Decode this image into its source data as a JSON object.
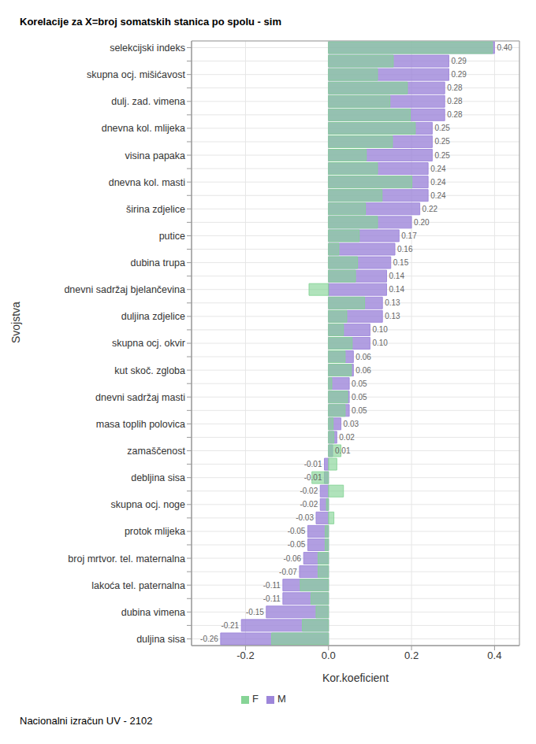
{
  "chart_data": {
    "type": "bar",
    "orientation": "horizontal",
    "title": "Korelacije za X=broj somatskih stanica po spolu - sim",
    "footer": "Nacionalni izračun UV - 2102",
    "x_label": "Kor.koeficient",
    "y_label": "Svojstva",
    "categories": [
      "selekcijski indeks",
      null,
      "skupna ocj. mišićavost",
      null,
      "dulj. zad. vimena",
      null,
      "dnevna kol. mlijeka",
      null,
      "visina papaka",
      null,
      "dnevna kol. masti",
      null,
      "širina zdjelice",
      null,
      "putice",
      null,
      "dubina trupa",
      null,
      "dnevni sadržaj bjelančevina",
      null,
      "duljina zdjelice",
      null,
      "skupna ocj. okvir",
      null,
      "kut skoč. zgloba",
      null,
      "dnevni sadržaj masti",
      null,
      "masa toplih polovica",
      null,
      "zamaščenost",
      null,
      "debljina sisa",
      null,
      "skupna ocj. noge",
      null,
      "protok mlijeka",
      null,
      "broj mrtvor. tel. maternalna",
      null,
      "lakoća tel. paternalna",
      null,
      "dubina vimena",
      null,
      "duljina sisa"
    ],
    "series": [
      {
        "name": "M",
        "color": "#9d86da",
        "data_labels": true,
        "values": [
          0.4,
          0.29,
          0.29,
          0.28,
          0.28,
          0.28,
          0.25,
          0.25,
          0.25,
          0.24,
          0.24,
          0.24,
          0.22,
          0.2,
          0.17,
          0.16,
          0.15,
          0.14,
          0.14,
          0.13,
          0.13,
          0.1,
          0.1,
          0.06,
          0.06,
          0.05,
          0.05,
          0.05,
          0.03,
          0.02,
          0.01,
          -0.01,
          -0.01,
          -0.02,
          -0.02,
          -0.03,
          -0.05,
          -0.05,
          -0.06,
          -0.07,
          -0.11,
          -0.11,
          -0.15,
          -0.21,
          -0.26
        ],
        "value_labels": [
          "0.40",
          "0.29",
          "0.29",
          "0.28",
          "0.28",
          "0.28",
          "0.25",
          "0.25",
          "0.25",
          "0.24",
          "0.24",
          "0.24",
          "0.22",
          "0.20",
          "0.17",
          "0.16",
          "0.15",
          "0.14",
          "0.14",
          "0.13",
          "0.13",
          "0.10",
          "0.10",
          "0.06",
          "0.06",
          "0.05",
          "0.05",
          "0.05",
          "0.03",
          "0.02",
          "0.01",
          "-0.01",
          "-0.01",
          "-0.02",
          "-0.02",
          "-0.03",
          "-0.05",
          "-0.05",
          "-0.06",
          "-0.07",
          "-0.11",
          "-0.11",
          "-0.15",
          "-0.21",
          "-0.26"
        ]
      },
      {
        "name": "F",
        "color": "#86d496",
        "values": [
          0.395,
          0.156,
          0.118,
          0.19,
          0.148,
          0.197,
          0.209,
          0.154,
          0.091,
          0.118,
          0.201,
          0.129,
          0.089,
          0.118,
          0.074,
          0.025,
          0.07,
          0.065,
          -0.047,
          0.087,
          0.044,
          0.036,
          0.057,
          0.04,
          0.055,
          0.008,
          0.046,
          0.04,
          0.011,
          0.013,
          0.03,
          0.02,
          -0.04,
          0.036,
          -0.005,
          0.013,
          -0.008,
          -0.008,
          -0.025,
          -0.025,
          -0.068,
          -0.042,
          -0.03,
          -0.063,
          -0.137
        ]
      }
    ],
    "xlim": [
      -0.33,
      0.46
    ],
    "xticks": [
      -0.2,
      {
        "value": 0,
        "label": "0.0"
      },
      0.2,
      0.4
    ],
    "grid": true,
    "legend": "bottom"
  }
}
